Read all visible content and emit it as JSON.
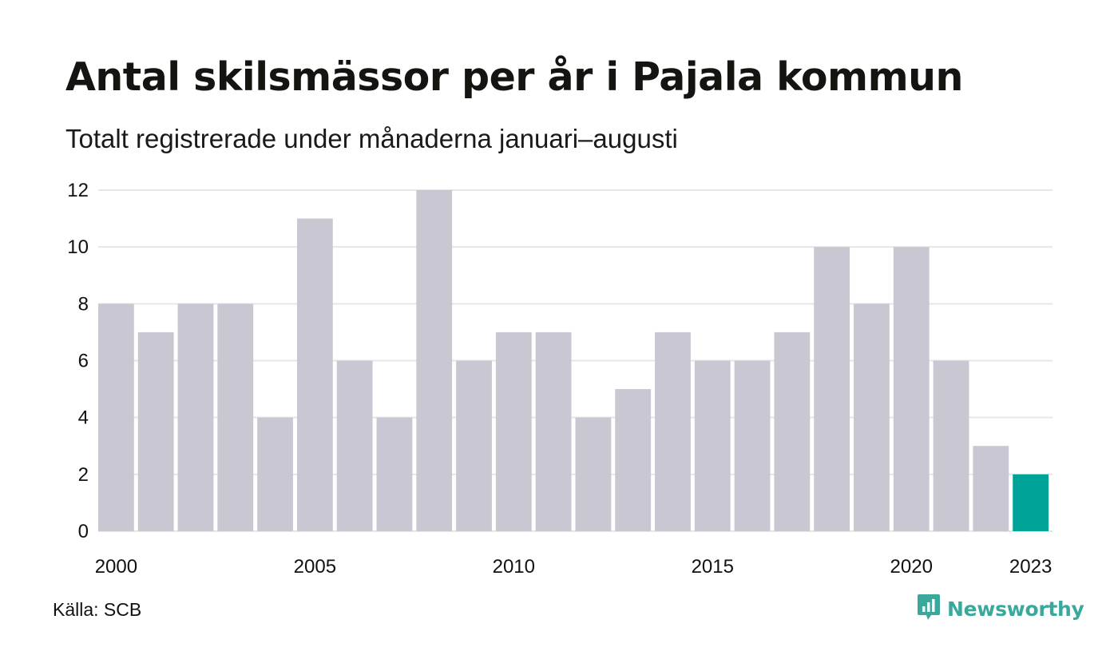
{
  "title": "Antal skilsmässor per år i Pajala kommun",
  "subtitle": "Totalt registrerade under månaderna januari–augusti",
  "source": "Källa: SCB",
  "brand": {
    "name": "Newsworthy",
    "icon": "newsworthy-logo-icon",
    "color": "#3aa89a"
  },
  "colors": {
    "bar": "#c8c7d2",
    "highlight": "#00a398",
    "grid": "#e6e6e6",
    "text": "#111111"
  },
  "chart_data": {
    "type": "bar",
    "title": "Antal skilsmässor per år i Pajala kommun",
    "subtitle": "Totalt registrerade under månaderna januari–augusti",
    "categories": [
      "2000",
      "2001",
      "2002",
      "2003",
      "2004",
      "2005",
      "2006",
      "2007",
      "2008",
      "2009",
      "2010",
      "2011",
      "2012",
      "2013",
      "2014",
      "2015",
      "2016",
      "2017",
      "2018",
      "2019",
      "2020",
      "2021",
      "2022",
      "2023"
    ],
    "values": [
      8,
      7,
      8,
      8,
      4,
      11,
      6,
      4,
      12,
      6,
      7,
      7,
      4,
      5,
      7,
      6,
      6,
      7,
      10,
      8,
      10,
      6,
      3,
      2
    ],
    "highlight_category": "2023",
    "x_tick_labels": [
      "2000",
      "2005",
      "2010",
      "2015",
      "2020",
      "2023"
    ],
    "y_ticks": [
      0,
      2,
      4,
      6,
      8,
      10,
      12
    ],
    "ylim": [
      0,
      12
    ],
    "xlabel": "",
    "ylabel": "",
    "grid": true,
    "legend": false
  }
}
